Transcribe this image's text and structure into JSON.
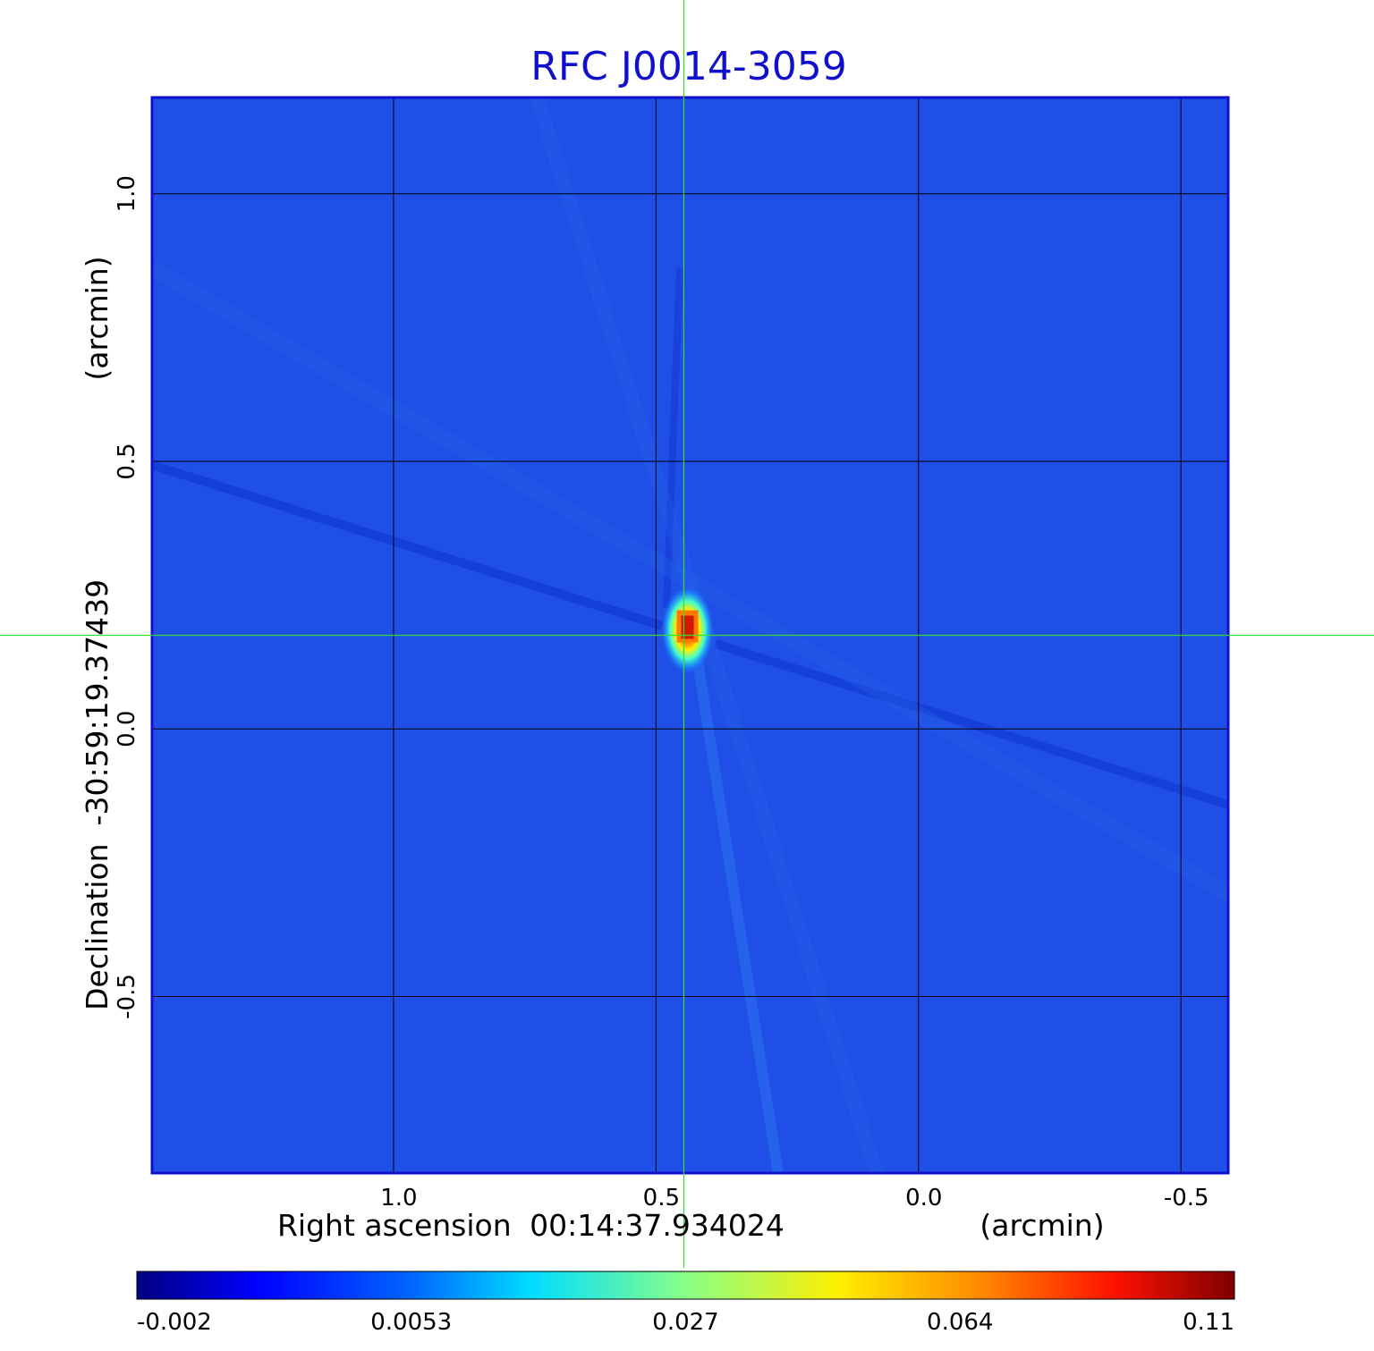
{
  "chart_data": {
    "type": "heatmap",
    "title": "RFC J0014-3059",
    "xlabel": {
      "name": "Right ascension",
      "ref": "00:14:37.934024",
      "unit": "(arcmin)"
    },
    "ylabel": {
      "name": "Declination",
      "ref": "-30:59:19.37439",
      "unit": "(arcmin)"
    },
    "x_ticks": [
      "1.0",
      "0.5",
      "0.0",
      "-0.5"
    ],
    "x_tick_values": [
      1.0,
      0.5,
      0.0,
      -0.5
    ],
    "y_ticks": [
      "1.0",
      "0.5",
      "0.0",
      "-0.5"
    ],
    "y_tick_values": [
      1.0,
      0.5,
      0.0,
      -0.5
    ],
    "xlim": [
      1.46,
      -0.59
    ],
    "ylim": [
      -0.83,
      1.18
    ],
    "x_reversed": true,
    "grid": true,
    "crosshair": {
      "x": 0.447,
      "y": 0.175
    },
    "source": {
      "x": 0.44,
      "y": 0.185,
      "peak": 0.11
    },
    "colorbar": {
      "colormap": "jet",
      "ticks": [
        "-0.002",
        "0.0053",
        "0.027",
        "0.064",
        "0.11"
      ],
      "tick_values": [
        -0.002,
        0.0053,
        0.027,
        0.064,
        0.11
      ]
    },
    "colors": {
      "title": "#1010cc",
      "crosshair": "#33dd33",
      "grid": "#000000",
      "background_field": "#1f4fe6"
    }
  }
}
